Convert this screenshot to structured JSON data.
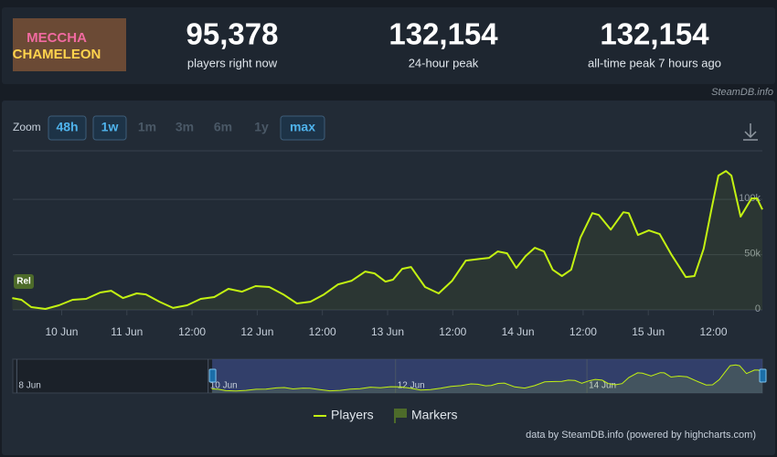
{
  "logo": {
    "line1": "MECCHA",
    "line2": "CHAMELEON"
  },
  "stats": [
    {
      "value": "95,378",
      "label": "players right now"
    },
    {
      "value": "132,154",
      "label": "24-hour peak"
    },
    {
      "value": "132,154",
      "label": "all-time peak 7 hours ago"
    }
  ],
  "source": "SteamDB.info",
  "zoom": {
    "label": "Zoom",
    "buttons": [
      "48h",
      "1w",
      "1m",
      "3m",
      "6m",
      "1y",
      "max"
    ]
  },
  "chart_data": {
    "type": "line",
    "xlim": [
      -9,
      129
    ],
    "xticks": [
      {
        "value": 0,
        "label": "10 Jun"
      },
      {
        "value": 12,
        "label": "11 Jun"
      },
      {
        "value": 24,
        "label": "12:00"
      },
      {
        "value": 36,
        "label": "12 Jun"
      },
      {
        "value": 48,
        "label": "12:00"
      },
      {
        "value": 60,
        "label": "13 Jun"
      },
      {
        "value": 72,
        "label": "12:00"
      },
      {
        "value": 84,
        "label": "14 Jun"
      },
      {
        "value": 96,
        "label": "12:00"
      },
      {
        "value": 108,
        "label": "15 Jun"
      },
      {
        "value": 120,
        "label": "12:00"
      }
    ],
    "ylim": [
      0,
      144000
    ],
    "yticks": [
      0,
      {
        "value": 50000,
        "label": "50k"
      },
      {
        "value": 100000,
        "label": "100k"
      }
    ],
    "grid": true,
    "annotations": [
      {
        "x": -9,
        "label": "Rel"
      }
    ],
    "series": [
      {
        "name": "Players",
        "color": "#c3f212",
        "x": [
          -9.1,
          -7.4,
          -5.6,
          -3.0,
          -0.5,
          2.0,
          4.5,
          7.1,
          9.1,
          11.3,
          13.8,
          15.5,
          18.0,
          20.5,
          23.1,
          25.6,
          28.1,
          30.7,
          33.2,
          35.7,
          38.2,
          40.8,
          43.3,
          45.8,
          48.3,
          50.9,
          53.4,
          55.9,
          57.6,
          59.6,
          61.0,
          62.7,
          64.3,
          66.9,
          69.4,
          71.9,
          74.4,
          77.0,
          78.7,
          80.3,
          82.0,
          83.7,
          85.4,
          87.1,
          88.8,
          90.4,
          92.1,
          93.8,
          95.5,
          97.7,
          98.9,
          101.1,
          103.4,
          104.4,
          106.1,
          108.1,
          110.1,
          112.3,
          114.9,
          116.5,
          118.2,
          119.6,
          120.9,
          122.3,
          123.3,
          125.0,
          127.0,
          128.0,
          129.0
        ],
        "values": [
          10700,
          9100,
          2500,
          800,
          4100,
          9100,
          9900,
          15700,
          17300,
          10700,
          14900,
          14000,
          7400,
          1700,
          4100,
          9900,
          11600,
          19000,
          16500,
          21500,
          20700,
          14000,
          5800,
          7400,
          14000,
          23100,
          26400,
          34700,
          33000,
          25600,
          27300,
          37200,
          38800,
          20700,
          14900,
          26400,
          44600,
          46200,
          47100,
          52900,
          51200,
          38000,
          48700,
          56200,
          52900,
          36300,
          30600,
          36300,
          65300,
          87600,
          85900,
          72700,
          88400,
          87600,
          67800,
          71900,
          68600,
          49600,
          29700,
          30600,
          55400,
          90200,
          121600,
          125700,
          121600,
          84400,
          100900,
          100900,
          90900
        ]
      },
      {
        "name": "Markers",
        "color": "#4d6b2a"
      }
    ]
  },
  "navigator": {
    "xlim": [
      -59,
      129
    ],
    "xticks": [
      {
        "value": -58,
        "label": "8 Jun"
      },
      {
        "value": -10,
        "label": "10 Jun"
      },
      {
        "value": 37,
        "label": "12 Jun"
      },
      {
        "value": 85,
        "label": "14 Jun"
      }
    ]
  },
  "credits": "data by SteamDB.info (powered by highcharts.com)"
}
